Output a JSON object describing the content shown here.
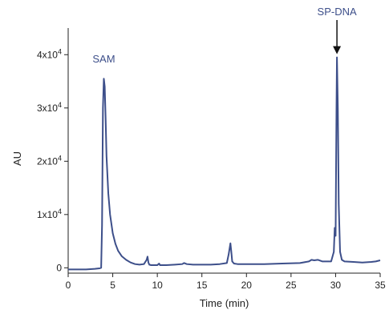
{
  "chart_data": {
    "type": "line",
    "xlabel": "Time (min)",
    "ylabel": "AU",
    "xlim": [
      0,
      35
    ],
    "ylim": [
      -1000,
      45000
    ],
    "x_ticks": [
      0,
      5,
      10,
      15,
      20,
      25,
      30,
      35
    ],
    "x_tick_labels": [
      "0",
      "5",
      "10",
      "15",
      "20",
      "25",
      "30",
      "35"
    ],
    "y_ticks": [
      {
        "value": 0,
        "mantissa": "0",
        "exp": ""
      },
      {
        "value": 10000,
        "mantissa": "1x10",
        "exp": "4"
      },
      {
        "value": 20000,
        "mantissa": "2x10",
        "exp": "4"
      },
      {
        "value": 30000,
        "mantissa": "3x10",
        "exp": "4"
      },
      {
        "value": 40000,
        "mantissa": "4x10",
        "exp": "4"
      }
    ],
    "grid": false,
    "line_color": "#3d4f8a",
    "series": [
      {
        "x": [
          0,
          1,
          2,
          3,
          3.5,
          3.7,
          3.8,
          3.9,
          4.0,
          4.1,
          4.2,
          4.3,
          4.5,
          4.7,
          5.0,
          5.3,
          5.6,
          6.0,
          6.5,
          7.0,
          7.5,
          8.0,
          8.5,
          8.8,
          8.9,
          9.0,
          9.1,
          9.3,
          9.6,
          10.0,
          10.2,
          10.3,
          10.5,
          11,
          12,
          12.8,
          13.0,
          13.3,
          14,
          15,
          16,
          17,
          17.8,
          18.0,
          18.2,
          18.3,
          18.4,
          18.6,
          19.0,
          20,
          22,
          24,
          26,
          27.0,
          27.3,
          27.6,
          28,
          28.5,
          29,
          29.5,
          29.8,
          29.9,
          30.0,
          30.1,
          30.15,
          30.25,
          30.35,
          30.5,
          30.7,
          31,
          32,
          33,
          34,
          34.5,
          35
        ],
        "y": [
          -300,
          -300,
          -300,
          -200,
          -100,
          0,
          8000,
          30000,
          35500,
          34000,
          28000,
          21000,
          14000,
          10000,
          6500,
          4500,
          3200,
          2200,
          1500,
          1000,
          700,
          600,
          700,
          1500,
          2100,
          1000,
          600,
          500,
          500,
          500,
          800,
          500,
          500,
          500,
          600,
          700,
          900,
          700,
          600,
          600,
          600,
          700,
          900,
          2500,
          4600,
          3000,
          1200,
          800,
          700,
          700,
          700,
          800,
          900,
          1200,
          1500,
          1400,
          1500,
          1200,
          1200,
          1200,
          3000,
          7500,
          6000,
          30000,
          39500,
          30000,
          12000,
          3000,
          1500,
          1200,
          1100,
          1000,
          1100,
          1200,
          1400
        ]
      }
    ],
    "annotations": [
      {
        "text": "SAM",
        "x": 4.0,
        "y": 35500,
        "arrow": false
      },
      {
        "text": "SP-DNA",
        "x": 30.15,
        "y": 39500,
        "arrow": true
      }
    ]
  }
}
